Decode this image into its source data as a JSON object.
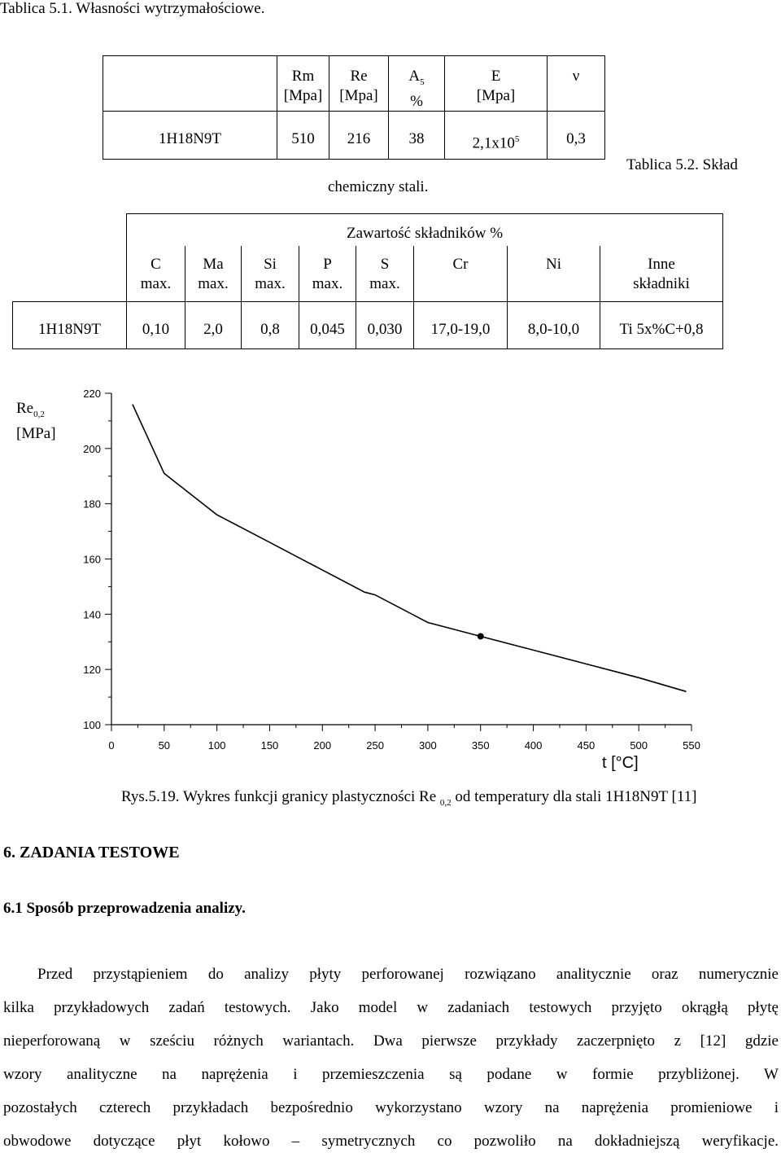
{
  "table1": {
    "caption": "Tablica 5.1. Własności wytrzymałościowe.",
    "headers": [
      {
        "top": "Rm",
        "bottom": "[Mpa]"
      },
      {
        "top": "Re",
        "bottom": "[Mpa]"
      },
      {
        "top": "A",
        "sub": "5",
        "bottom": "%"
      },
      {
        "top": "E",
        "bottom": "[Mpa]"
      },
      {
        "top": "ν",
        "bottom": ""
      }
    ],
    "row": {
      "material": "1H18N9T",
      "rm": "510",
      "re": "216",
      "a5": "38",
      "e_base": "2,1x10",
      "e_exp": "5",
      "nu": "0,3"
    }
  },
  "table2": {
    "caption_part1": "Tablica 5.2. Skład",
    "caption_part2": "chemiczny stali.",
    "group_header": "Zawartość składników  %",
    "headers": [
      {
        "top": "C",
        "bottom": "max."
      },
      {
        "top": "Ma",
        "bottom": "max."
      },
      {
        "top": "Si",
        "bottom": "max."
      },
      {
        "top": "P",
        "bottom": "max."
      },
      {
        "top": "S",
        "bottom": "max."
      },
      {
        "top": "Cr",
        "bottom": ""
      },
      {
        "top": "Ni",
        "bottom": ""
      },
      {
        "top": "Inne",
        "bottom": "składniki"
      }
    ],
    "row": {
      "material": "1H18N9T",
      "values": [
        "0,10",
        "2,0",
        "0,8",
        "0,045",
        "0,030",
        "17,0-19,0",
        "8,0-10,0",
        "Ti 5x%C+0,8"
      ]
    }
  },
  "chart_data": {
    "type": "line",
    "ylabel": "Re",
    "ylabel_sub": "0,2",
    "ylabel_unit": "[MPa]",
    "xlabel": "t [°C]",
    "xlim": [
      0,
      550
    ],
    "ylim": [
      100,
      220
    ],
    "x_ticks": [
      0,
      50,
      100,
      150,
      200,
      250,
      300,
      350,
      400,
      450,
      500,
      550
    ],
    "y_ticks": [
      100,
      120,
      140,
      160,
      180,
      200,
      220
    ],
    "x": [
      20,
      50,
      100,
      150,
      200,
      240,
      250,
      300,
      350,
      400,
      450,
      500,
      545
    ],
    "y": [
      216,
      191,
      176,
      166,
      156,
      148,
      147,
      137,
      132,
      127,
      122,
      117,
      112
    ],
    "marker": {
      "x": 350,
      "y": 132
    }
  },
  "figure": {
    "caption_main": "Rys.5.19. Wykres funkcji granicy plastyczności Re",
    "caption_sub": "0,2",
    "caption_rest": "od temperatury dla stali 1H18N9T [11]"
  },
  "section": {
    "heading": "6. ZADANIA TESTOWE",
    "subheading": "6.1  Sposób przeprowadzenia analizy.",
    "lines": [
      "Przed przystąpieniem do analizy płyty perforowanej rozwiązano analitycznie oraz numerycznie",
      "kilka przykładowych zadań testowych. Jako model w  zadaniach  testowych  przyjęto okrągłą  płytę",
      "nieperforowaną w sześciu różnych wariantach. Dwa pierwsze przykłady zaczerpnięto z [12] gdzie",
      "wzory analityczne na naprężenia i przemieszczenia są podane w formie przybliżonej. W",
      "pozostałych czterech przykładach bezpośrednio wykorzystano wzory na naprężenia promieniowe i",
      "obwodowe dotyczące  płyt kołowo – symetrycznych co pozwoliło na dokładniejszą weryfikacje."
    ]
  }
}
